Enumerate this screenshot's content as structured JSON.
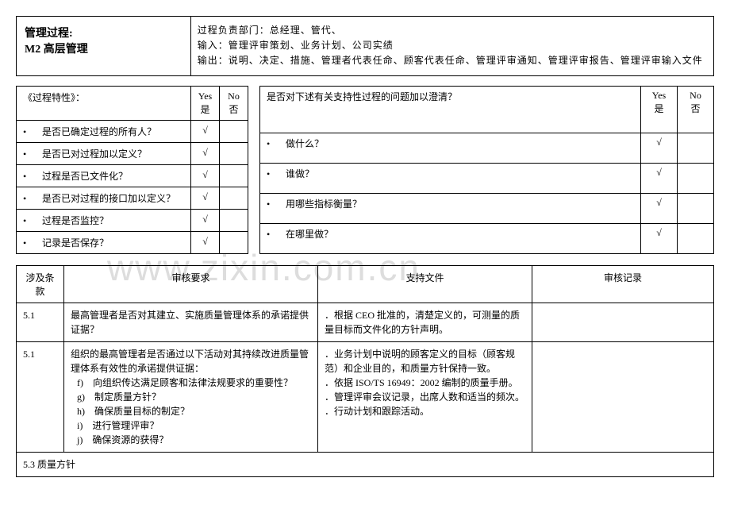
{
  "header": {
    "title1": "管理过程:",
    "title2": "M2 高层管理",
    "dept": "过程负责部门：总经理、管代、",
    "input": "输入：管理评审策划、业务计划、公司实绩",
    "output": "输出：说明、决定、措施、管理者代表任命、顾客代表任命、管理评审通知、管理评审报告、管理评审输入文件"
  },
  "charTable": {
    "header": "《过程特性》：",
    "yes": "Yes 是",
    "no": "No 否",
    "rows": [
      {
        "q": "是否已确定过程的所有人？",
        "yes": "√",
        "no": ""
      },
      {
        "q": "是否已对过程加以定义？",
        "yes": "√",
        "no": ""
      },
      {
        "q": "过程是否已文件化？",
        "yes": "√",
        "no": ""
      },
      {
        "q": "是否已对过程的接口加以定义？",
        "yes": "√",
        "no": ""
      },
      {
        "q": "过程是否监控？",
        "yes": "√",
        "no": ""
      },
      {
        "q": "记录是否保存？",
        "yes": "√",
        "no": ""
      }
    ]
  },
  "supportTable": {
    "header": "是否对下述有关支持性过程的问题加以澄清？",
    "yes": "Yes 是",
    "no": "No 否",
    "rows": [
      {
        "q": "做什么？",
        "yes": "√",
        "no": ""
      },
      {
        "q": "谁做？",
        "yes": "√",
        "no": ""
      },
      {
        "q": "用哪些指标衡量？",
        "yes": "√",
        "no": ""
      },
      {
        "q": "在哪里做？",
        "yes": "√",
        "no": ""
      }
    ]
  },
  "auditTable": {
    "headers": {
      "c1": "涉及条款",
      "c2": "审核要求",
      "c3": "支持文件",
      "c4": "审核记录"
    },
    "rows": [
      {
        "c1": "5.1",
        "c2": "最高管理者是否对其建立、实施质量管理体系的承诺提供证据？",
        "c3": "．根据 CEO 批准的，清楚定义的，可测量的质量目标而文件化的方针声明。",
        "c4": ""
      },
      {
        "c1": "5.1",
        "c2_intro": "组织的最高管理者是否通过以下活动对其持续改进质量管理体系有效性的承诺提供证据：",
        "c2_list": [
          "f)　向组织传达满足顾客和法律法规要求的重要性？",
          "g)　制定质量方针？",
          "h)　确保质量目标的制定？",
          "i)　进行管理评审？",
          "j)　确保资源的获得？"
        ],
        "c3_list": [
          "．业务计划中说明的顾客定义的目标（顾客规范）和企业目的，和质量方针保持一致。",
          "．依据 ISO/TS 16949：2002 编制的质量手册。",
          "．管理评审会议记录，出席人数和适当的频次。",
          "．行动计划和跟踪活动。"
        ],
        "c4": ""
      },
      {
        "c1_full": "5.3 质量方针"
      }
    ]
  },
  "watermark": "www.zixin.com.cn"
}
